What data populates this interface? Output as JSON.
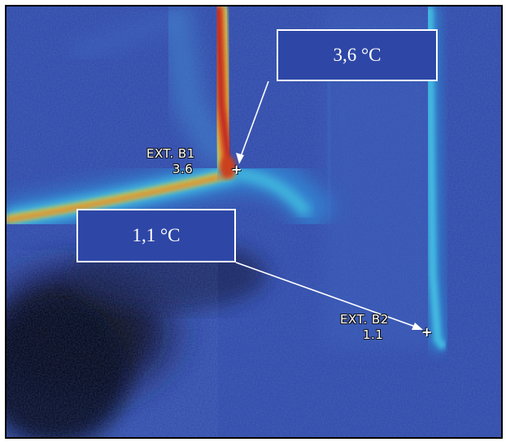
{
  "callouts": [
    {
      "text": "3,6 °C"
    },
    {
      "text": "1,1 °C"
    }
  ],
  "markers": [
    {
      "name": "EXT. B1",
      "value": "3.6",
      "symbol": "+"
    },
    {
      "name": "EXT. B2",
      "value": "1.1",
      "symbol": "+"
    }
  ],
  "palette": {
    "cold": "#1a2f8f",
    "base": "#2f47a8",
    "cyan": "#3fc8e6",
    "yellow": "#e8d23a",
    "orange": "#ee6a1c",
    "red": "#c81e0a",
    "black": "#050507",
    "white": "#ffffff"
  }
}
